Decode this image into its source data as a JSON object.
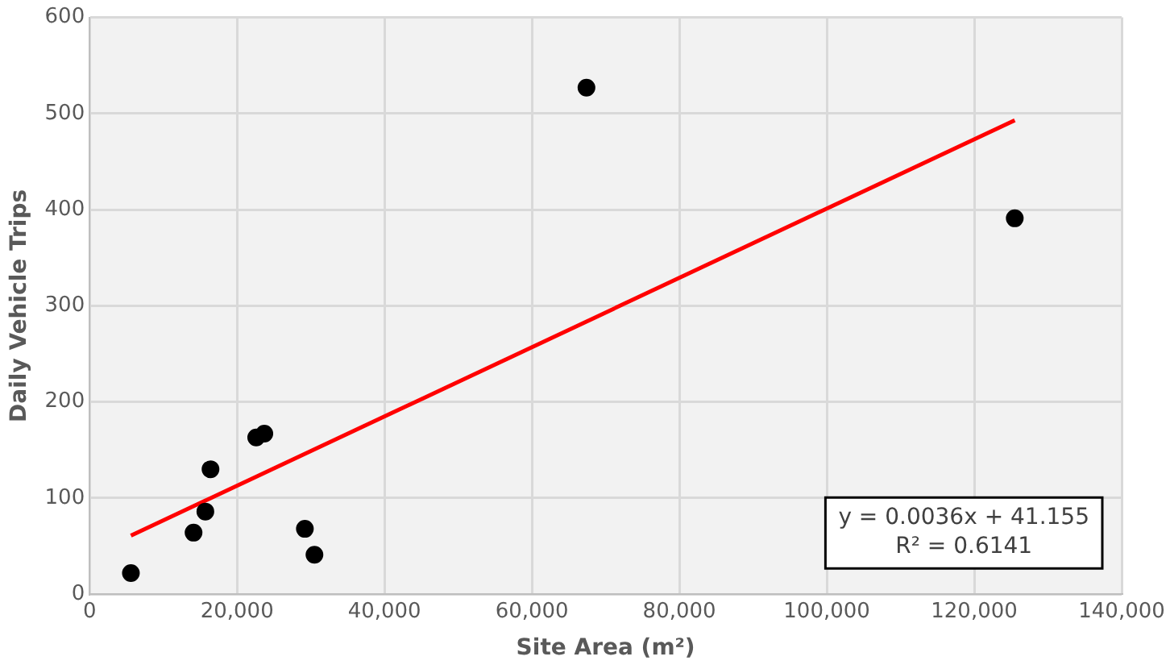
{
  "chart_data": {
    "type": "scatter",
    "xlabel": "Site Area (m²)",
    "ylabel": "Daily Vehicle Trips",
    "x": [
      5600,
      14100,
      15700,
      16400,
      22600,
      23700,
      29200,
      30500,
      67400,
      125500
    ],
    "series": [
      {
        "color": "#000000",
        "marker": "circle",
        "values": [
          22,
          64,
          86,
          130,
          163,
          167,
          68,
          41,
          527,
          391
        ]
      },
      {
        "type": "line",
        "color": "#ff0000",
        "x": [
          5600,
          125500
        ],
        "values": [
          61,
          493
        ]
      }
    ],
    "xlim": [
      0,
      140000
    ],
    "xticks": [
      {
        "value": 0,
        "label": "0"
      },
      {
        "value": 20000,
        "label": "20,000"
      },
      {
        "value": 40000,
        "label": "40,000"
      },
      {
        "value": 60000,
        "label": "60,000"
      },
      {
        "value": 80000,
        "label": "80,000"
      },
      {
        "value": 100000,
        "label": "100,000"
      },
      {
        "value": 120000,
        "label": "120,000"
      },
      {
        "value": 140000,
        "label": "140,000"
      }
    ],
    "ylim": [
      0,
      600
    ],
    "yticks": [
      0,
      100,
      200,
      300,
      400,
      500,
      600
    ],
    "annotations": [
      "y = 0.0036x + 41.155",
      "R² = 0.6141"
    ],
    "grid": true,
    "legend": false
  }
}
